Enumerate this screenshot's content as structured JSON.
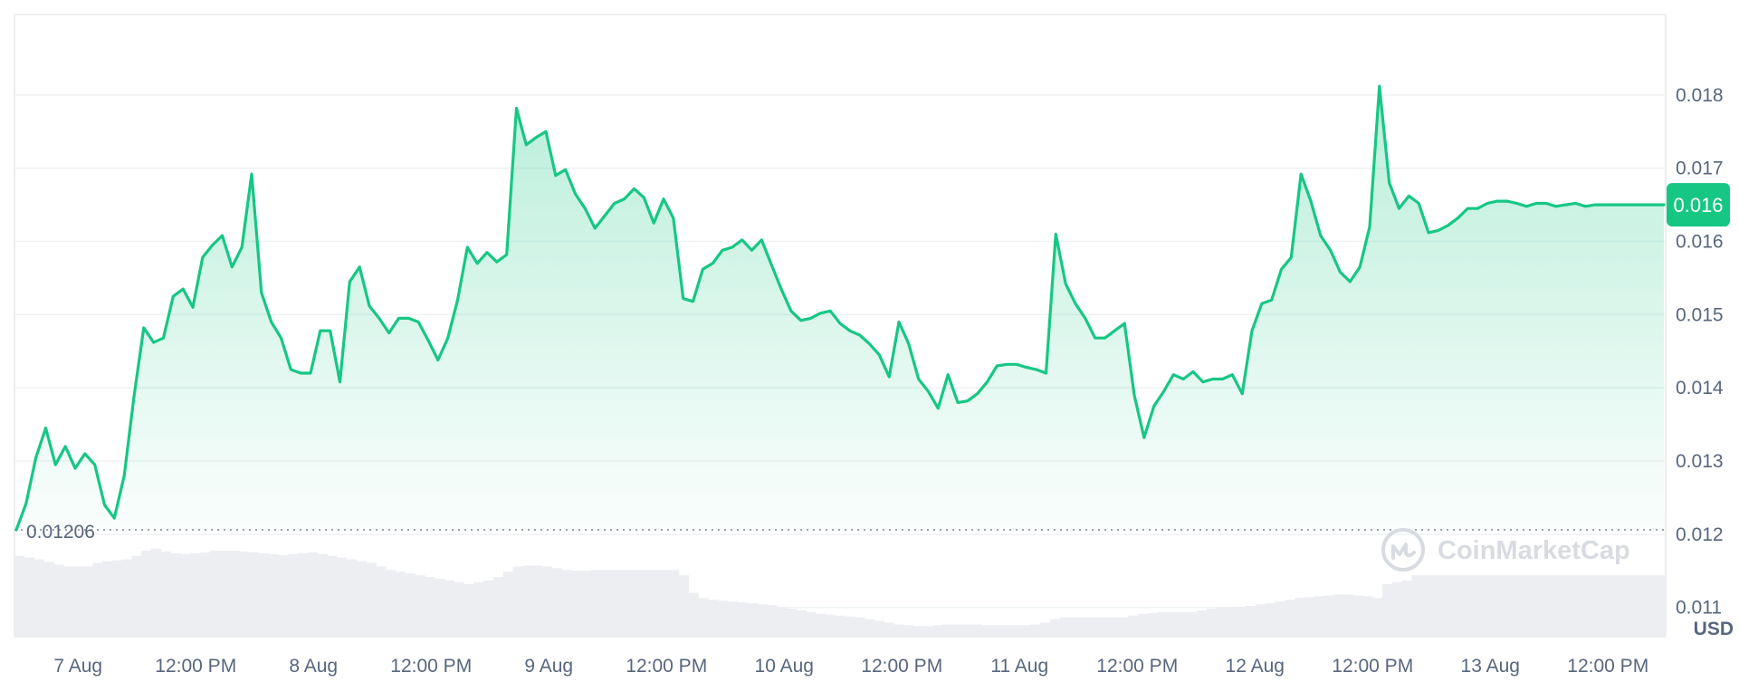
{
  "chart_data": {
    "type": "area",
    "title": "",
    "currency_label": "USD",
    "watermark": "CoinMarketCap",
    "x_tick_labels": [
      "7 Aug",
      "12:00 PM",
      "8 Aug",
      "12:00 PM",
      "9 Aug",
      "12:00 PM",
      "10 Aug",
      "12:00 PM",
      "11 Aug",
      "12:00 PM",
      "12 Aug",
      "12:00 PM",
      "13 Aug",
      "12:00 PM"
    ],
    "y_tick_labels": [
      "0.018",
      "0.017",
      "0.016",
      "0.015",
      "0.014",
      "0.013",
      "0.012",
      "0.011"
    ],
    "y_ticks": [
      0.018,
      0.017,
      0.016,
      0.015,
      0.014,
      0.013,
      0.012,
      0.011
    ],
    "ylim": [
      0.0106,
      0.0191
    ],
    "baseline_value": 0.01206,
    "baseline_label": "0.01206",
    "current_price_label": "0.016",
    "current_price_value": 0.0165,
    "colors": {
      "line": "#16c784",
      "badge": "#16c784",
      "volume": "#eceef1",
      "grid": "#eff2f5"
    },
    "series": [
      {
        "hours_from_start": [
          0,
          1,
          2,
          3,
          4,
          5,
          6,
          7,
          8,
          9,
          10,
          11,
          12,
          13,
          14,
          15,
          16,
          17,
          18,
          19,
          20,
          21,
          22,
          23,
          24,
          25,
          26,
          27,
          28,
          29,
          30,
          31,
          32,
          33,
          34,
          35,
          36,
          37,
          38,
          39,
          40,
          41,
          42,
          43,
          44,
          45,
          46,
          47,
          48,
          49,
          50,
          51,
          52,
          53,
          54,
          55,
          56,
          57,
          58,
          59,
          60,
          61,
          62,
          63,
          64,
          65,
          66,
          67,
          68,
          69,
          70,
          71,
          72,
          73,
          74,
          75,
          76,
          77,
          78,
          79,
          80,
          81,
          82,
          83,
          84,
          85,
          86,
          87,
          88,
          89,
          90,
          91,
          92,
          93,
          94,
          95,
          96,
          97,
          98,
          99,
          100,
          101,
          102,
          103,
          104,
          105,
          106,
          107,
          108,
          109,
          110,
          111,
          112,
          113,
          114,
          115,
          116,
          117,
          118,
          119,
          120,
          121,
          122,
          123,
          124,
          125,
          126,
          127,
          128,
          129,
          130,
          131,
          132,
          133,
          134,
          135,
          136,
          137,
          138,
          139,
          140,
          141,
          142,
          143,
          144,
          145,
          146,
          147,
          148,
          149,
          150,
          151,
          152,
          153,
          154,
          155,
          156,
          157,
          158,
          159,
          160,
          161,
          162,
          163,
          164,
          165,
          166,
          167,
          168
        ],
        "price_usd": [
          0.01206,
          0.01242,
          0.01305,
          0.01345,
          0.01295,
          0.0132,
          0.0129,
          0.0131,
          0.01295,
          0.0124,
          0.01222,
          0.0128,
          0.01388,
          0.01482,
          0.01462,
          0.01468,
          0.01525,
          0.01535,
          0.0151,
          0.01578,
          0.01595,
          0.01608,
          0.01565,
          0.01592,
          0.01692,
          0.0153,
          0.0149,
          0.01468,
          0.01425,
          0.0142,
          0.0142,
          0.01478,
          0.01478,
          0.01408,
          0.01545,
          0.01565,
          0.01512,
          0.01495,
          0.01475,
          0.01495,
          0.01495,
          0.0149,
          0.01465,
          0.01438,
          0.01468,
          0.0152,
          0.01592,
          0.0157,
          0.01585,
          0.01572,
          0.01582,
          0.01782,
          0.01732,
          0.01742,
          0.0175,
          0.0169,
          0.01698,
          0.01665,
          0.01645,
          0.01618,
          0.01635,
          0.01652,
          0.01658,
          0.01672,
          0.0166,
          0.01625,
          0.01658,
          0.01632,
          0.01522,
          0.01518,
          0.01562,
          0.0157,
          0.01588,
          0.01592,
          0.01602,
          0.01588,
          0.01602,
          0.01568,
          0.01535,
          0.01505,
          0.01492,
          0.01495,
          0.01502,
          0.01505,
          0.01488,
          0.01478,
          0.01472,
          0.0146,
          0.01445,
          0.01415,
          0.0149,
          0.0146,
          0.01412,
          0.01395,
          0.01372,
          0.01418,
          0.0138,
          0.01382,
          0.01392,
          0.01408,
          0.0143,
          0.01432,
          0.01432,
          0.01428,
          0.01425,
          0.0142,
          0.0161,
          0.01542,
          0.01515,
          0.01495,
          0.01468,
          0.01468,
          0.01478,
          0.01488,
          0.0139,
          0.01332,
          0.01375,
          0.01395,
          0.01418,
          0.01412,
          0.01422,
          0.01408,
          0.01412,
          0.01412,
          0.01418,
          0.01392,
          0.01478,
          0.01515,
          0.0152,
          0.01562,
          0.01578,
          0.01692,
          0.01655,
          0.01608,
          0.01588,
          0.01558,
          0.01545,
          0.01565,
          0.0162,
          0.01812,
          0.0168,
          0.01645,
          0.01662,
          0.01652,
          0.01612,
          0.01615,
          0.01622,
          0.01632,
          0.01645,
          0.01645,
          0.01652,
          0.01655,
          0.01655,
          0.01652,
          0.01648,
          0.01652,
          0.01652,
          0.01648,
          0.0165,
          0.01652,
          0.01648,
          0.0165,
          0.0165,
          0.0165,
          0.0165,
          0.0165,
          0.0165,
          0.0165,
          0.0165
        ]
      }
    ],
    "volume": [
      0.92,
      0.9,
      0.88,
      0.85,
      0.82,
      0.8,
      0.8,
      0.8,
      0.84,
      0.86,
      0.87,
      0.88,
      0.92,
      0.98,
      1.0,
      0.97,
      0.95,
      0.94,
      0.95,
      0.96,
      0.98,
      0.98,
      0.98,
      0.97,
      0.96,
      0.95,
      0.94,
      0.93,
      0.94,
      0.95,
      0.96,
      0.94,
      0.92,
      0.9,
      0.88,
      0.86,
      0.84,
      0.8,
      0.76,
      0.74,
      0.72,
      0.7,
      0.68,
      0.66,
      0.64,
      0.62,
      0.6,
      0.62,
      0.64,
      0.68,
      0.74,
      0.8,
      0.81,
      0.81,
      0.8,
      0.78,
      0.76,
      0.75,
      0.75,
      0.76,
      0.76,
      0.76,
      0.76,
      0.76,
      0.76,
      0.76,
      0.76,
      0.76,
      0.7,
      0.5,
      0.44,
      0.42,
      0.41,
      0.4,
      0.39,
      0.38,
      0.37,
      0.36,
      0.34,
      0.32,
      0.3,
      0.28,
      0.26,
      0.25,
      0.24,
      0.23,
      0.22,
      0.2,
      0.18,
      0.16,
      0.14,
      0.13,
      0.12,
      0.12,
      0.13,
      0.14,
      0.14,
      0.14,
      0.14,
      0.13,
      0.13,
      0.13,
      0.13,
      0.13,
      0.14,
      0.16,
      0.2,
      0.22,
      0.22,
      0.22,
      0.22,
      0.22,
      0.22,
      0.22,
      0.24,
      0.26,
      0.27,
      0.28,
      0.28,
      0.28,
      0.28,
      0.3,
      0.32,
      0.33,
      0.34,
      0.34,
      0.35,
      0.37,
      0.38,
      0.4,
      0.42,
      0.44,
      0.45,
      0.46,
      0.47,
      0.48,
      0.48,
      0.47,
      0.46,
      0.44,
      0.6,
      0.62,
      0.64,
      0.7,
      0.7,
      0.7,
      0.7,
      0.7,
      0.7,
      0.7,
      0.7,
      0.7,
      0.7,
      0.7,
      0.7,
      0.7,
      0.7,
      0.7,
      0.7,
      0.7,
      0.7,
      0.7,
      0.7,
      0.7,
      0.7,
      0.7,
      0.7,
      0.7,
      0.7
    ]
  }
}
